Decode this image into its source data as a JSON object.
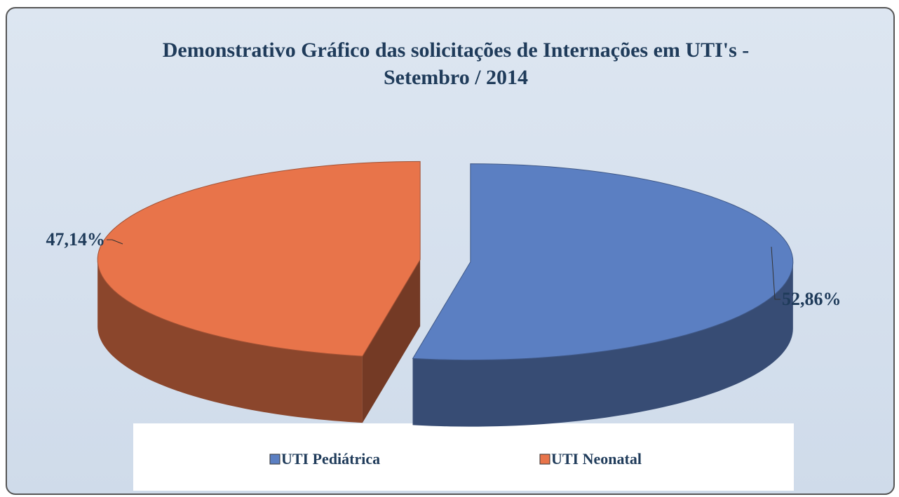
{
  "chart_data": {
    "type": "pie",
    "title": "Demonstrativo Gráfico das solicitações de Internações em UTI's - Setembro / 2014",
    "categories": [
      "UTI Pediátrica",
      "UTI Neonatal"
    ],
    "values": [
      52.86,
      47.14
    ],
    "value_labels": [
      "52,86%",
      "47,14%"
    ],
    "colors": [
      "#5b7fc2",
      "#e8744a"
    ],
    "legend": "bottom"
  }
}
